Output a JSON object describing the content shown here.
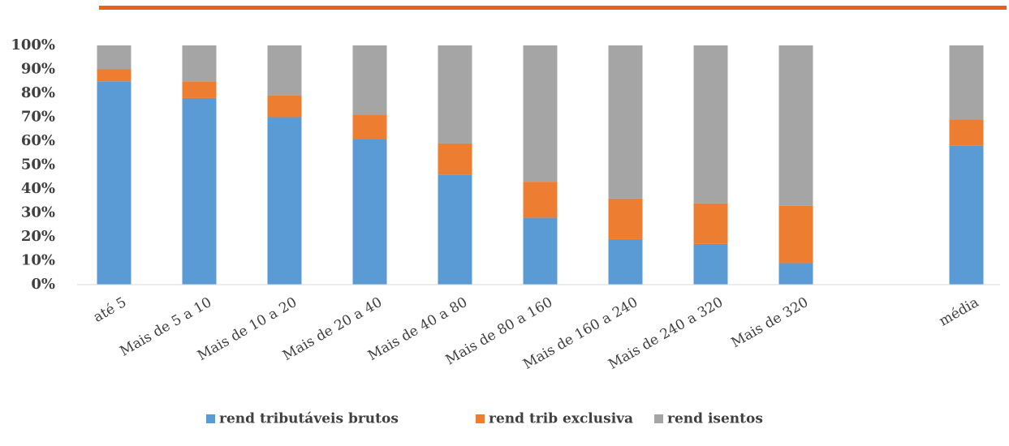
{
  "chart_data": {
    "type": "stacked_bar",
    "categories": [
      "até 5",
      "Mais de 5 a 10",
      "Mais de 10 a 20",
      "Mais de 20 a 40",
      "Mais de 40 a 80",
      "Mais de 80 a 160",
      "Mais de 160 a 240",
      "Mais de 240 a 320",
      "Mais de 320",
      null,
      "média"
    ],
    "series": [
      {
        "name": "rend tributáveis brutos",
        "color": "#5b9bd5",
        "values": [
          85,
          78,
          70,
          61,
          46,
          28,
          19,
          17,
          9,
          null,
          58
        ]
      },
      {
        "name": "rend trib exclusiva",
        "color": "#ed7d31",
        "values": [
          5,
          7,
          9,
          10,
          13,
          15,
          17,
          17,
          24,
          null,
          11
        ]
      },
      {
        "name": "rend isentos",
        "color": "#a5a5a5",
        "values": [
          10,
          15,
          21,
          29,
          41,
          57,
          64,
          66,
          67,
          null,
          31
        ]
      }
    ],
    "ylim": [
      0,
      100
    ],
    "yticks": [
      {
        "value": 0,
        "label": "0%"
      },
      {
        "value": 10,
        "label": "10%"
      },
      {
        "value": 20,
        "label": "20%"
      },
      {
        "value": 30,
        "label": "30%"
      },
      {
        "value": 40,
        "label": "40%"
      },
      {
        "value": 50,
        "label": "50%"
      },
      {
        "value": 60,
        "label": "60%"
      },
      {
        "value": 70,
        "label": "70%"
      },
      {
        "value": 80,
        "label": "80%"
      },
      {
        "value": 90,
        "label": "90%"
      },
      {
        "value": 100,
        "label": "100%"
      }
    ],
    "grid": false,
    "legend": "bottom"
  }
}
